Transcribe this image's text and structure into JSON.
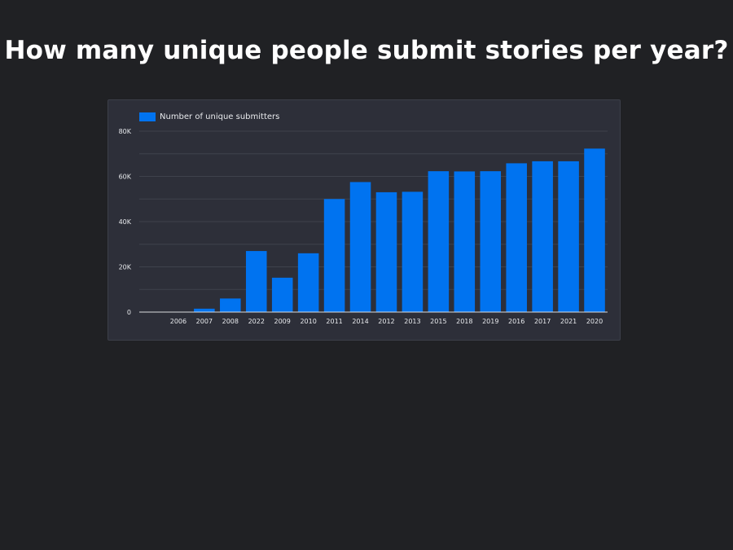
{
  "title": "How many unique people submit stories per year?",
  "colors": {
    "background": "#202124",
    "card": "#2d2f39",
    "bar": "#0073f0",
    "grid": "#3f424c",
    "axis_text": "#e8eaed",
    "baseline": "#dadce0"
  },
  "chart_data": {
    "type": "bar",
    "categories": [
      "",
      "2006",
      "2007",
      "2008",
      "2022",
      "2009",
      "2010",
      "2011",
      "2014",
      "2012",
      "2013",
      "2015",
      "2018",
      "2019",
      "2016",
      "2017",
      "2021",
      "2020"
    ],
    "series": [
      {
        "name": "Number of unique submitters",
        "values": [
          0,
          100,
          1500,
          6000,
          27000,
          15200,
          26000,
          50000,
          57500,
          53000,
          53200,
          62300,
          62200,
          62300,
          65800,
          66700,
          66700,
          72300
        ]
      }
    ],
    "ylim": [
      0,
      80000
    ],
    "yticks": [
      0,
      20000,
      40000,
      60000,
      80000
    ],
    "ytick_labels": [
      "0",
      "20K",
      "40K",
      "60K",
      "80K"
    ],
    "grid": true,
    "legend_position": "top-left"
  }
}
